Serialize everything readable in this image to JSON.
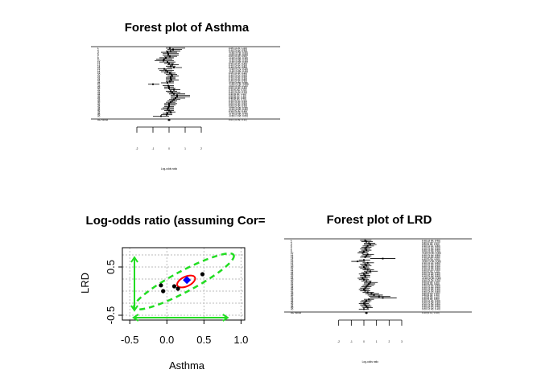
{
  "chart_data": [
    {
      "type": "forest",
      "title": "Forest plot of Asthma",
      "xlabel": "Log-odds ratio",
      "xlim": [
        -2,
        2
      ],
      "ticks": [
        -2,
        -1,
        0,
        1,
        2
      ],
      "study_labels": [
        "1",
        "2",
        "3",
        "4",
        "5",
        "6",
        "7",
        "8",
        "9",
        "10",
        "11",
        "12",
        "13",
        "14",
        "15",
        "16",
        "17",
        "18",
        "19",
        "20",
        "21",
        "22",
        "23",
        "24",
        "25",
        "26",
        "27",
        "28",
        "29",
        "30",
        "31",
        "32",
        "33",
        "34",
        "35",
        "36",
        "37",
        "38",
        "39",
        "40",
        "41",
        "42",
        "43",
        "44",
        "45",
        "46",
        "47",
        "48",
        "49",
        "50"
      ],
      "estimates": [
        0.05,
        0.25,
        0.1,
        -0.1,
        -0.05,
        -0.05,
        0.05,
        -0.2,
        -0.3,
        -0.35,
        -0.1,
        0.0,
        0.2,
        0.1,
        0.3,
        -0.3,
        -0.2,
        -0.1,
        0.05,
        0.15,
        0.2,
        0.1,
        0.1,
        0.15,
        0.05,
        -0.1,
        -1.0,
        -0.05,
        0.0,
        0.0,
        0.3,
        0.1,
        0.2,
        0.3,
        0.5,
        0.5,
        0.4,
        0.3,
        0.2,
        0.1,
        0.0,
        0.0,
        0.0,
        -0.05,
        -0.1,
        0.0,
        0.1,
        -0.1,
        -0.15,
        -0.5
      ],
      "ci_low": [
        -0.2,
        -0.1,
        -0.2,
        -0.5,
        -0.4,
        -0.4,
        -0.3,
        -0.6,
        -0.8,
        -0.9,
        -0.6,
        -0.3,
        -0.1,
        -0.2,
        -0.1,
        -0.7,
        -0.6,
        -0.5,
        -0.3,
        -0.2,
        -0.1,
        -0.2,
        -0.2,
        -0.2,
        -0.2,
        -0.5,
        -1.3,
        -0.4,
        -0.3,
        -0.3,
        0.0,
        -0.2,
        -0.1,
        0.0,
        0.1,
        0.1,
        0.1,
        0.0,
        -0.1,
        -0.2,
        -0.3,
        -0.3,
        -0.3,
        -0.4,
        -0.5,
        -0.3,
        -0.2,
        -0.4,
        -0.5,
        -1.0
      ],
      "ci_high": [
        1.0,
        0.8,
        0.7,
        0.5,
        0.6,
        0.6,
        0.5,
        0.3,
        0.2,
        0.3,
        0.4,
        0.3,
        0.6,
        0.4,
        0.8,
        0.2,
        0.3,
        0.2,
        0.4,
        0.5,
        0.6,
        0.4,
        0.4,
        0.6,
        0.3,
        0.3,
        -0.6,
        0.3,
        0.3,
        0.4,
        0.7,
        0.5,
        0.7,
        1.0,
        1.3,
        1.3,
        1.0,
        0.7,
        0.5,
        0.4,
        0.5,
        0.4,
        0.3,
        0.3,
        0.3,
        0.3,
        0.4,
        0.2,
        0.2,
        0.0
      ],
      "summary_label": "RE Model",
      "summary_estimate": 0.0,
      "ci_text_rows": 50,
      "summary_ci_text": "0.01 [-0.09, 0.11]"
    },
    {
      "type": "scatter",
      "title": "Log-odds ratio (assuming Cor=",
      "xlabel": "Asthma",
      "ylabel": "LRD",
      "xlim": [
        -0.6,
        1.05
      ],
      "ylim": [
        -0.6,
        0.9
      ],
      "xticks": [
        -0.5,
        0.0,
        0.5,
        1.0
      ],
      "yticks": [
        -0.5,
        0.5
      ],
      "xtick_labels": [
        "-0.5",
        "0.0",
        "0.5",
        "1.0"
      ],
      "ytick_labels": [
        "-0.5",
        "0.5"
      ],
      "points": [
        {
          "x": -0.08,
          "y": 0.12
        },
        {
          "x": -0.05,
          "y": 0.0
        },
        {
          "x": 0.1,
          "y": 0.1
        },
        {
          "x": 0.15,
          "y": 0.05
        },
        {
          "x": 0.48,
          "y": 0.35
        }
      ],
      "summary_point": {
        "x": 0.27,
        "y": 0.23
      },
      "colors": {
        "points": "#000000",
        "summary": "#0000ff",
        "inner_ellipse": "#ff0000",
        "outer_ellipse": "#22dd22",
        "grid": "#bbbbbb"
      }
    },
    {
      "type": "forest",
      "title": "Forest plot of LRD",
      "xlabel": "Log-odds ratio",
      "xlim": [
        -3,
        3
      ],
      "ticks": [
        -2,
        -1,
        0,
        1,
        2,
        3
      ],
      "tick_text": [
        "-2",
        "-1",
        "0",
        "1",
        "2",
        "3"
      ],
      "study_labels": [
        "1",
        "2",
        "3",
        "4",
        "5",
        "6",
        "7",
        "8",
        "9",
        "10",
        "11",
        "12",
        "13",
        "14",
        "15",
        "16",
        "17",
        "18",
        "19",
        "20",
        "21",
        "22",
        "23",
        "24",
        "25",
        "26",
        "27",
        "28",
        "29",
        "30",
        "31",
        "32",
        "33",
        "34",
        "35",
        "36",
        "37",
        "38",
        "39",
        "40",
        "41",
        "42",
        "43",
        "44",
        "45",
        "46",
        "47",
        "48",
        "49",
        "50"
      ],
      "estimates": [
        0.1,
        0.2,
        0.4,
        0.5,
        0.3,
        0.2,
        0.1,
        0.2,
        0.0,
        -0.1,
        0.3,
        0.2,
        0.1,
        1.5,
        0.0,
        -0.5,
        0.3,
        0.1,
        0.2,
        0.0,
        0.1,
        0.3,
        0.5,
        0.2,
        0.0,
        0.1,
        0.1,
        -0.1,
        0.0,
        0.2,
        0.5,
        0.4,
        0.3,
        0.2,
        0.1,
        0.0,
        0.1,
        0.3,
        0.6,
        0.8,
        1.2,
        1.5,
        0.4,
        0.2,
        0.1,
        0.0,
        0.1,
        0.2,
        0.3,
        0.0
      ],
      "ci_low": [
        -0.3,
        -0.2,
        0.0,
        0.0,
        -0.1,
        -0.2,
        -0.3,
        -0.2,
        -0.4,
        -0.5,
        -0.1,
        -0.2,
        -0.3,
        0.5,
        -0.4,
        -1.0,
        -0.1,
        -0.3,
        -0.2,
        -0.4,
        -0.3,
        -0.1,
        0.0,
        -0.2,
        -0.4,
        -0.3,
        -0.3,
        -0.5,
        -0.4,
        -0.2,
        0.0,
        0.0,
        -0.1,
        -0.2,
        -0.3,
        -0.4,
        -0.3,
        -0.1,
        0.1,
        0.3,
        0.4,
        0.5,
        0.0,
        -0.2,
        -0.3,
        -0.4,
        -0.3,
        -0.2,
        -0.1,
        -0.4
      ],
      "ci_high": [
        0.6,
        0.7,
        0.9,
        1.0,
        0.8,
        0.6,
        0.5,
        0.6,
        0.4,
        0.3,
        0.8,
        0.6,
        0.5,
        2.5,
        0.5,
        0.1,
        0.8,
        0.5,
        0.6,
        0.4,
        0.5,
        0.8,
        1.1,
        0.6,
        0.4,
        0.5,
        0.5,
        0.3,
        0.4,
        0.6,
        1.1,
        0.9,
        0.8,
        0.6,
        0.5,
        0.4,
        0.5,
        0.8,
        1.2,
        1.5,
        2.1,
        2.6,
        0.8,
        0.6,
        0.5,
        0.4,
        0.5,
        0.6,
        0.7,
        0.4
      ],
      "summary_label": "RE Model",
      "summary_estimate": 0.2,
      "ci_text_rows": 50,
      "summary_ci_text": "0.20 [0.11, 0.30]"
    }
  ]
}
